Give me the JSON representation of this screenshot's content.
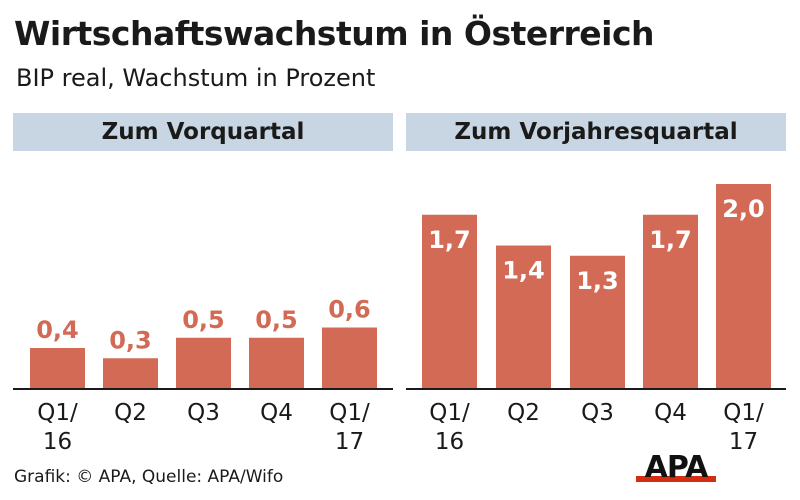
{
  "title": "Wirtschaftswachstum in Österreich",
  "subtitle": "BIP real, Wachstum in Prozent",
  "footer": "Grafik: © APA, Quelle: APA/Wifo",
  "logo_text": "APA",
  "colors": {
    "bar": "#d36a55",
    "header_bg": "#c8d6e3",
    "logo_bar": "#d42e12",
    "axis": "#1a1a1a"
  },
  "chart_data": [
    {
      "type": "bar",
      "title": "Zum Vorquartal",
      "categories": [
        [
          "Q1/",
          "16"
        ],
        [
          "Q2"
        ],
        [
          "Q3"
        ],
        [
          "Q4"
        ],
        [
          "Q1/",
          "17"
        ]
      ],
      "values": [
        0.4,
        0.3,
        0.5,
        0.5,
        0.6
      ],
      "value_labels": [
        "0,4",
        "0,3",
        "0,5",
        "0,5",
        "0,6"
      ],
      "ylim": [
        0,
        2.0
      ]
    },
    {
      "type": "bar",
      "title": "Zum Vorjahresquartal",
      "categories": [
        [
          "Q1/",
          "16"
        ],
        [
          "Q2"
        ],
        [
          "Q3"
        ],
        [
          "Q4"
        ],
        [
          "Q1/",
          "17"
        ]
      ],
      "values": [
        1.7,
        1.4,
        1.3,
        1.7,
        2.0
      ],
      "value_labels": [
        "1,7",
        "1,4",
        "1,3",
        "1,7",
        "2,0"
      ],
      "ylim": [
        0,
        2.0
      ]
    }
  ]
}
